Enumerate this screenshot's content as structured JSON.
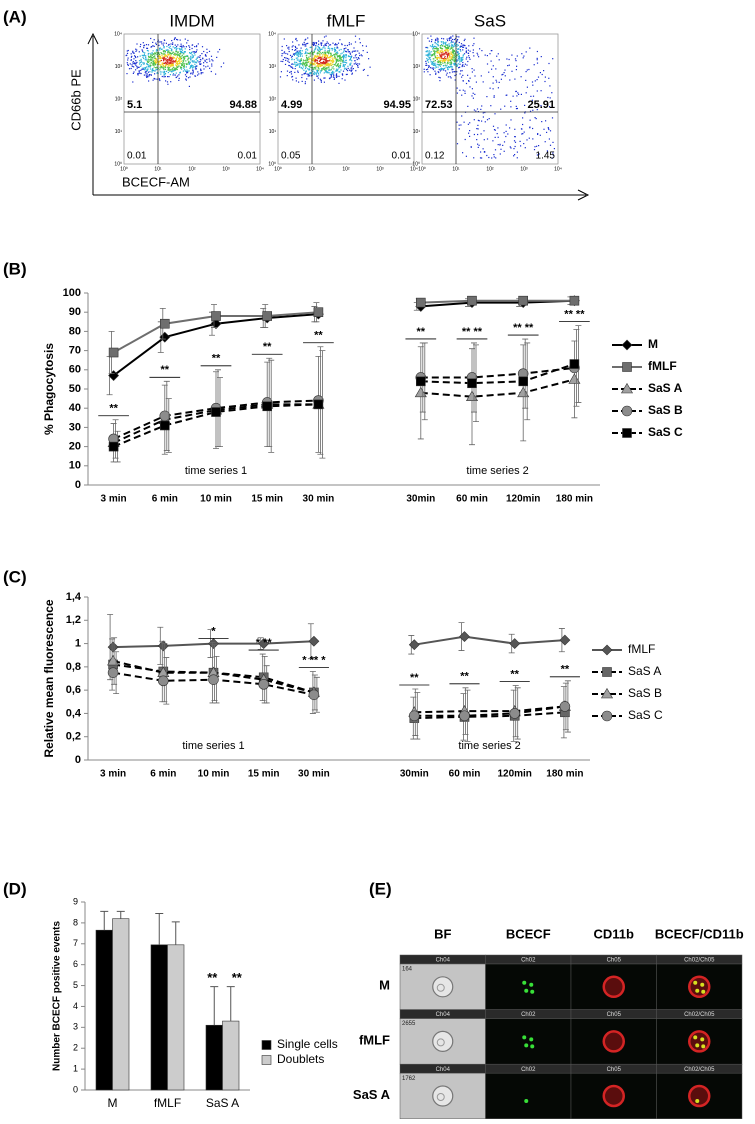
{
  "panels": {
    "a": {
      "label": "(A)",
      "y_axis_label": "CD66b PE",
      "x_axis_label": "BCECF-AM",
      "axis_ticks": [
        "10⁰",
        "10¹",
        "10²",
        "10³",
        "10⁴"
      ],
      "plots": [
        {
          "title": "IMDM",
          "quadrants": {
            "upper_left": 5.1,
            "upper_right": 94.88,
            "lower_left": 0.01,
            "lower_right": 0.01
          }
        },
        {
          "title": "fMLF",
          "quadrants": {
            "upper_left": 4.99,
            "upper_right": 94.95,
            "lower_left": 0.05,
            "lower_right": 0.01
          }
        },
        {
          "title": "SaS",
          "quadrants": {
            "upper_left": 72.53,
            "upper_right": 25.91,
            "lower_left": 0.12,
            "lower_right": 1.45
          }
        }
      ]
    },
    "e": {
      "label": "(E)",
      "columns": [
        "BF",
        "BCECF",
        "CD11b",
        "BCECF/CD11b"
      ],
      "channels": [
        "Ch04",
        "Ch02",
        "Ch05",
        "Ch02/Ch05"
      ],
      "rows": [
        {
          "label": "M",
          "object": 164
        },
        {
          "label": "fMLF",
          "object": 2655
        },
        {
          "label": "SaS A",
          "object": 1762
        }
      ]
    }
  },
  "chart_data": [
    {
      "type": "line",
      "panel_label": "(B)",
      "y_label": "% Phagocytosis",
      "categories": [
        "3 min",
        "6 min",
        "10 min",
        "15 min",
        "30 min",
        null,
        "30min",
        "60 min",
        "120min",
        "180 min"
      ],
      "annotations": [
        "time series 1",
        "time series 2"
      ],
      "ylim": [
        0,
        100
      ],
      "yticks": [
        0,
        10,
        20,
        30,
        40,
        50,
        60,
        70,
        80,
        90,
        100
      ],
      "legend": "right",
      "significance": [
        "**",
        "**",
        "**",
        "**",
        "**",
        null,
        "**",
        "** **",
        "** **",
        "** **"
      ],
      "series": [
        {
          "name": "M",
          "color": "#000000",
          "line_color": "#000000",
          "marker": "diamond",
          "line_style": "solid",
          "values": [
            57,
            77,
            84,
            87,
            89,
            null,
            93,
            95,
            95,
            96
          ],
          "errors": [
            10,
            8,
            6,
            5,
            4,
            null,
            2,
            2,
            2,
            2
          ]
        },
        {
          "name": "fMLF",
          "color": "#6e6e6e",
          "line_color": "#6e6e6e",
          "marker": "square",
          "line_style": "solid",
          "values": [
            69,
            84,
            88,
            88,
            90,
            null,
            95,
            96,
            96,
            96
          ],
          "errors": [
            11,
            8,
            6,
            6,
            5,
            null,
            2,
            2,
            2,
            2
          ]
        },
        {
          "name": "SaS A",
          "color": "#a0a0a0",
          "line_color": "#000000",
          "marker": "triangle",
          "line_style": "dashed",
          "values": [
            22,
            34,
            39,
            42,
            42,
            null,
            48,
            46,
            48,
            55
          ],
          "errors": [
            10,
            18,
            20,
            22,
            25,
            null,
            24,
            25,
            25,
            20
          ]
        },
        {
          "name": "SaS B",
          "color": "#8c8c8c",
          "line_color": "#000000",
          "marker": "circle",
          "line_style": "dashed",
          "values": [
            24,
            36,
            40,
            43,
            44,
            null,
            56,
            56,
            58,
            61
          ],
          "errors": [
            10,
            18,
            20,
            23,
            28,
            null,
            18,
            18,
            18,
            20
          ]
        },
        {
          "name": "SaS C",
          "color": "#000000",
          "line_color": "#000000",
          "marker": "square",
          "line_style": "dashed",
          "values": [
            20,
            31,
            38,
            41,
            42,
            null,
            54,
            53,
            54,
            63
          ],
          "errors": [
            8,
            14,
            18,
            24,
            28,
            null,
            20,
            20,
            20,
            20
          ]
        }
      ]
    },
    {
      "type": "line",
      "panel_label": "(C)",
      "y_label": "Relative mean fluorescence",
      "categories": [
        "3 min",
        "6 min",
        "10 min",
        "15 min",
        "30 min",
        null,
        "30min",
        "60 min",
        "120min",
        "180 min"
      ],
      "annotations": [
        "time series 1",
        "time series 2"
      ],
      "ylim": [
        0,
        1.4
      ],
      "yticks": [
        0,
        {
          "value": 0.2,
          "label": "0,2"
        },
        {
          "value": 0.4,
          "label": "0,4"
        },
        {
          "value": 0.6,
          "label": "0,6"
        },
        {
          "value": 0.8,
          "label": "0,8"
        },
        1,
        {
          "value": 1.2,
          "label": "1,2"
        },
        {
          "value": 1.4,
          "label": "1,4"
        }
      ],
      "legend": "right",
      "significance": [
        null,
        null,
        "*",
        "* **",
        "* ** *",
        null,
        "**",
        "**",
        "**",
        "**"
      ],
      "series": [
        {
          "name": "fMLF",
          "color": "#555555",
          "line_color": "#555555",
          "marker": "diamond",
          "line_style": "solid",
          "values": [
            0.97,
            0.98,
            1.0,
            1.0,
            1.02,
            null,
            0.99,
            1.06,
            1.0,
            1.03
          ],
          "errors": [
            0.28,
            0.16,
            0.12,
            0.05,
            0.15,
            null,
            0.08,
            0.12,
            0.08,
            0.1
          ]
        },
        {
          "name": "SaS A",
          "color": "#666666",
          "line_color": "#000000",
          "marker": "square",
          "line_style": "dashed",
          "values": [
            0.82,
            0.76,
            0.75,
            0.71,
            0.58,
            null,
            0.36,
            0.37,
            0.38,
            0.41
          ],
          "errors": [
            0.22,
            0.26,
            0.26,
            0.2,
            0.18,
            null,
            0.18,
            0.2,
            0.22,
            0.22
          ]
        },
        {
          "name": "SaS B",
          "color": "#a0a0a0",
          "line_color": "#000000",
          "marker": "triangle",
          "line_style": "dashed",
          "values": [
            0.85,
            0.75,
            0.75,
            0.69,
            0.58,
            null,
            0.41,
            0.42,
            0.42,
            0.46
          ],
          "errors": [
            0.2,
            0.25,
            0.24,
            0.2,
            0.15,
            null,
            0.2,
            0.2,
            0.22,
            0.2
          ]
        },
        {
          "name": "SaS C",
          "color": "#8c8c8c",
          "line_color": "#000000",
          "marker": "circle",
          "line_style": "dashed",
          "values": [
            0.75,
            0.68,
            0.69,
            0.65,
            0.56,
            null,
            0.38,
            0.38,
            0.4,
            0.46
          ],
          "errors": [
            0.18,
            0.2,
            0.2,
            0.16,
            0.15,
            null,
            0.2,
            0.22,
            0.22,
            0.22
          ]
        }
      ]
    },
    {
      "type": "bar",
      "panel_label": "(D)",
      "y_label": "Number BCECF positive events",
      "categories": [
        "M",
        "fMLF",
        "SaS A"
      ],
      "ylim": [
        0,
        9
      ],
      "yticks": [
        0,
        1,
        2,
        3,
        4,
        5,
        6,
        7,
        8,
        9
      ],
      "legend": "right",
      "series": [
        {
          "name": "Single cells",
          "color": "#000000",
          "values": [
            7.65,
            6.95,
            3.1
          ],
          "errors": [
            0.9,
            1.5,
            1.85
          ],
          "significance": [
            null,
            null,
            "**"
          ]
        },
        {
          "name": "Doublets",
          "color": "#cccccc",
          "values": [
            8.2,
            6.95,
            3.3
          ],
          "errors": [
            0.35,
            1.1,
            1.65
          ],
          "significance": [
            null,
            null,
            "**"
          ]
        }
      ]
    }
  ]
}
